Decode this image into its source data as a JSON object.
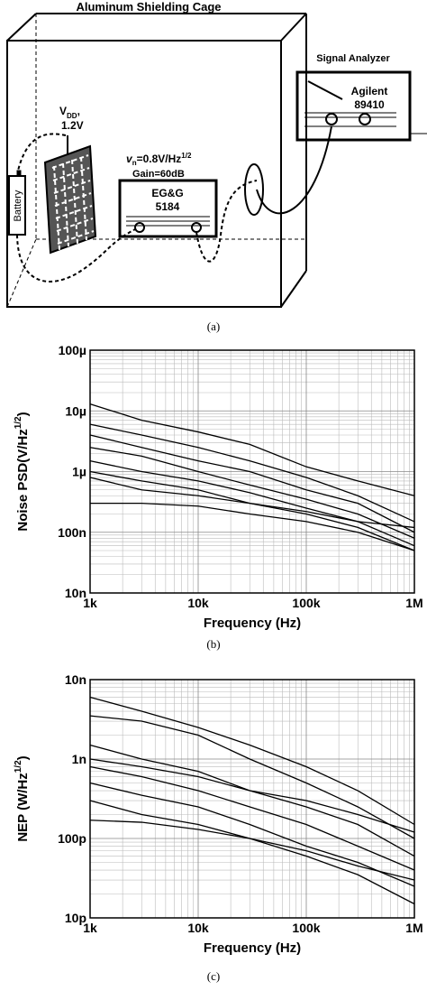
{
  "diagram": {
    "cage_title": "Aluminum Shielding Cage",
    "analyzer_title": "Signal Analyzer",
    "analyzer_brand": "Agilent",
    "analyzer_model": "89410",
    "vdd_main": "V",
    "vdd_sub": "DD",
    "vdd_comma": ",",
    "vdd_value": "1.2V",
    "vn_main": "v",
    "vn_sub": "n",
    "vn_value": "=0.8V/Hz",
    "vn_sup": "1/2",
    "gain": "Gain=60dB",
    "amp_brand": "EG&G",
    "amp_model": "5184",
    "battery": "Battery"
  },
  "captions": [
    "(a)",
    "(b)",
    "(c)"
  ],
  "chart_data": [
    {
      "type": "line",
      "log_x": true,
      "log_y": true,
      "grid": true,
      "minor_grid": true,
      "xlabel": "Frequency (Hz)",
      "ylabel": {
        "text": "Noise PSD(V/Hz",
        "superscript": "1/2",
        "suffix": ")"
      },
      "x": [
        1000,
        3000,
        10000,
        30000,
        100000,
        300000,
        1000000
      ],
      "xlim": [
        1000,
        1000000
      ],
      "xticks": [
        {
          "value": 1000,
          "label": "1k"
        },
        {
          "value": 10000,
          "label": "10k"
        },
        {
          "value": 100000,
          "label": "100k"
        },
        {
          "value": 1000000,
          "label": "1M"
        }
      ],
      "ylim": [
        1e-08,
        0.0001
      ],
      "yticks": [
        {
          "value": 1e-08,
          "label": "10n"
        },
        {
          "value": 1e-07,
          "label": "100n"
        },
        {
          "value": 1e-06,
          "label": "1µ"
        },
        {
          "value": 1e-05,
          "label": "10µ"
        },
        {
          "value": 0.0001,
          "label": "100µ"
        }
      ],
      "series": [
        {
          "color": "#000000",
          "values": [
            1.3e-05,
            7e-06,
            4.5e-06,
            2.8e-06,
            1.2e-06,
            7e-07,
            4e-07
          ]
        },
        {
          "color": "#000000",
          "values": [
            6e-06,
            4e-06,
            2.5e-06,
            1.5e-06,
            8e-07,
            4e-07,
            1.5e-07
          ]
        },
        {
          "color": "#000000",
          "values": [
            4e-06,
            2.5e-06,
            1.5e-06,
            1e-06,
            5e-07,
            3e-07,
            1e-07
          ]
        },
        {
          "color": "#000000",
          "values": [
            2.5e-06,
            1.8e-06,
            1e-06,
            6e-07,
            3.5e-07,
            2e-07,
            8e-08
          ]
        },
        {
          "color": "#000000",
          "values": [
            1.5e-06,
            1e-06,
            7e-07,
            4.5e-07,
            2.5e-07,
            1.5e-07,
            6e-08
          ]
        },
        {
          "color": "#000000",
          "values": [
            1e-06,
            7e-07,
            5e-07,
            3e-07,
            2e-07,
            1.2e-07,
            5e-08
          ]
        },
        {
          "color": "#000000",
          "values": [
            3e-07,
            3e-07,
            2.7e-07,
            2e-07,
            1.5e-07,
            1e-07,
            5e-08
          ]
        },
        {
          "color": "#000000",
          "values": [
            8e-07,
            5e-07,
            4e-07,
            3e-07,
            2.2e-07,
            1.5e-07,
            1.2e-07
          ]
        }
      ]
    },
    {
      "type": "line",
      "log_x": true,
      "log_y": true,
      "grid": true,
      "minor_grid": true,
      "xlabel": "Frequency (Hz)",
      "ylabel": {
        "prefix": "NEP ",
        "text": "(W/Hz",
        "superscript": "1/2",
        "suffix": ")"
      },
      "x": [
        1000,
        3000,
        10000,
        30000,
        100000,
        300000,
        1000000
      ],
      "xlim": [
        1000,
        1000000
      ],
      "xticks": [
        {
          "value": 1000,
          "label": "1k"
        },
        {
          "value": 10000,
          "label": "10k"
        },
        {
          "value": 100000,
          "label": "100k"
        },
        {
          "value": 1000000,
          "label": "1M"
        }
      ],
      "ylim": [
        1e-11,
        1e-08
      ],
      "yticks": [
        {
          "value": 1e-11,
          "label": "10p"
        },
        {
          "value": 1e-10,
          "label": "100p"
        },
        {
          "value": 1e-09,
          "label": "1n"
        },
        {
          "value": 1e-08,
          "label": "10n"
        }
      ],
      "series": [
        {
          "color": "#000000",
          "values": [
            6e-09,
            4e-09,
            2.5e-09,
            1.5e-09,
            8e-10,
            4e-10,
            1.5e-10
          ]
        },
        {
          "color": "#000000",
          "values": [
            3.5e-09,
            3e-09,
            2e-09,
            1e-09,
            5e-10,
            2.5e-10,
            1e-10
          ]
        },
        {
          "color": "#000000",
          "values": [
            1.5e-09,
            1e-09,
            7e-10,
            4e-10,
            2.5e-10,
            1.5e-10,
            6e-11
          ]
        },
        {
          "color": "#000000",
          "values": [
            8e-10,
            6e-10,
            4e-10,
            2.5e-10,
            1.5e-10,
            8e-11,
            4e-11
          ]
        },
        {
          "color": "#000000",
          "values": [
            5e-10,
            3.5e-10,
            2.5e-10,
            1.5e-10,
            8e-11,
            5e-11,
            2.5e-11
          ]
        },
        {
          "color": "#000000",
          "values": [
            3e-10,
            2e-10,
            1.5e-10,
            1e-10,
            6e-11,
            3.5e-11,
            1.5e-11
          ]
        },
        {
          "color": "#000000",
          "values": [
            1.7e-10,
            1.6e-10,
            1.3e-10,
            1e-10,
            7e-11,
            4.5e-11,
            3e-11
          ]
        },
        {
          "color": "#000000",
          "values": [
            1e-09,
            8e-10,
            6e-10,
            4e-10,
            3e-10,
            2e-10,
            1.2e-10
          ]
        }
      ]
    }
  ]
}
